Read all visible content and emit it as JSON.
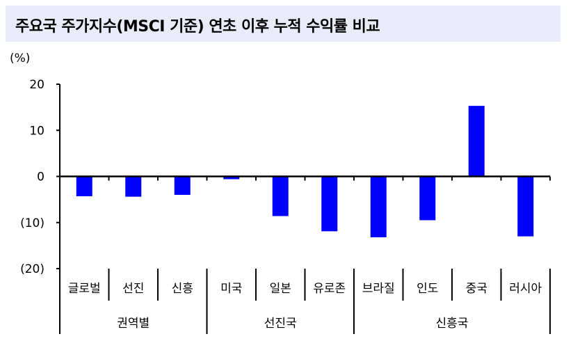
{
  "chart_data": {
    "type": "bar",
    "title": "주요국 주가지수(MSCI 기준) 연초 이후 누적 수익률 비교",
    "ylabel": "(%)",
    "ylim": [
      -20,
      20
    ],
    "yticks": [
      20,
      10,
      0,
      -10,
      -20
    ],
    "ytick_labels": [
      "20",
      "10",
      "0",
      "(10)",
      "(20)"
    ],
    "categories": [
      "글로벌",
      "선진",
      "신흥",
      "미국",
      "일본",
      "유로존",
      "브라질",
      "인도",
      "중국",
      "러시아"
    ],
    "groups": [
      {
        "label": "권역별",
        "count": 3
      },
      {
        "label": "선진국",
        "count": 3
      },
      {
        "label": "신흥국",
        "count": 4
      }
    ],
    "values": [
      -4.3,
      -4.4,
      -4.0,
      -0.6,
      -8.6,
      -11.9,
      -13.2,
      -9.5,
      15.3,
      -13.0
    ],
    "bar_color": "#0000ff",
    "grid": false
  }
}
